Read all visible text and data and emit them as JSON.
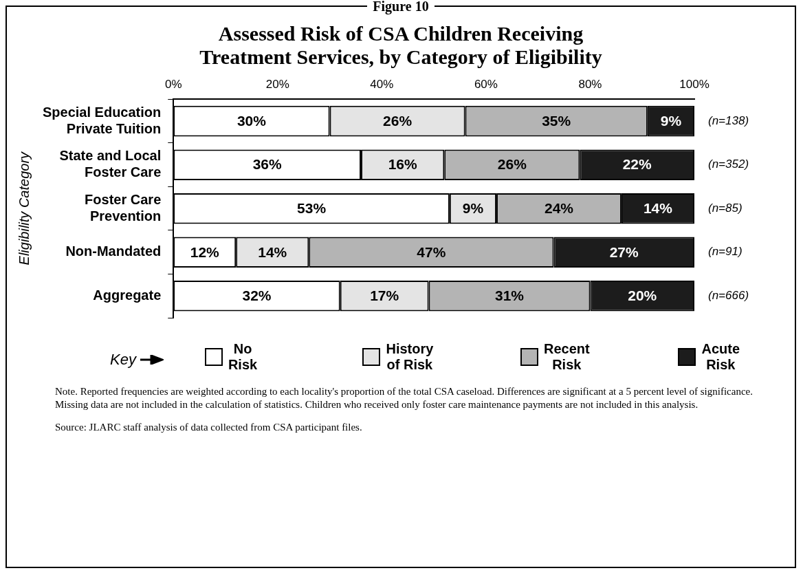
{
  "chart_data": {
    "type": "bar",
    "orientation": "horizontal",
    "stacked": true,
    "subtitle": "Figure 10",
    "title": "Assessed Risk of CSA Children Receiving\nTreatment Services, by Category of Eligibility",
    "ylabel": "Eligibility Category",
    "categories": [
      "Special Education\nPrivate Tuition",
      "State and Local\nFoster Care",
      "Foster Care\nPrevention",
      "Non-Mandated",
      "Aggregate"
    ],
    "series": [
      {
        "name": "No\nRisk",
        "color": "#ffffff",
        "values": [
          30,
          36,
          53,
          12,
          32
        ],
        "value_labels": [
          "30%",
          "36%",
          "53%",
          "12%",
          "32%"
        ]
      },
      {
        "name": "History\nof Risk",
        "color": "#e4e4e4",
        "values": [
          26,
          16,
          9,
          14,
          17
        ],
        "value_labels": [
          "26%",
          "16%",
          "9%",
          "14%",
          "17%"
        ]
      },
      {
        "name": "Recent\nRisk",
        "color": "#b4b4b4",
        "values": [
          35,
          26,
          24,
          47,
          31
        ],
        "value_labels": [
          "35%",
          "26%",
          "24%",
          "47%",
          "31%"
        ]
      },
      {
        "name": "Acute\nRisk",
        "color": "#1c1c1c",
        "values": [
          9,
          22,
          14,
          27,
          20
        ],
        "value_labels": [
          "9%",
          "22%",
          "14%",
          "27%",
          "20%"
        ]
      }
    ],
    "xlim": [
      0,
      100
    ],
    "xticks": [
      {
        "value": 0,
        "label": "0%"
      },
      {
        "value": 20,
        "label": "20%"
      },
      {
        "value": 40,
        "label": "40%"
      },
      {
        "value": 60,
        "label": "60%"
      },
      {
        "value": 80,
        "label": "80%"
      },
      {
        "value": 100,
        "label": "100%"
      }
    ],
    "grid": false,
    "legend": "bottom",
    "annotations": [
      "(n=138)",
      "(n=352)",
      "(n=85)",
      "(n=91)",
      "(n=666)",
      "Key",
      "Note.  Reported frequencies are weighted according to each locality's proportion of the total CSA caseload. Differences are significant at a 5 percent level of significance. Missing data are not included in the calculation of statistics. Children who received only foster care maintenance payments are not included in this analysis.",
      "Source:  JLARC staff analysis of data collected from CSA participant files."
    ]
  }
}
